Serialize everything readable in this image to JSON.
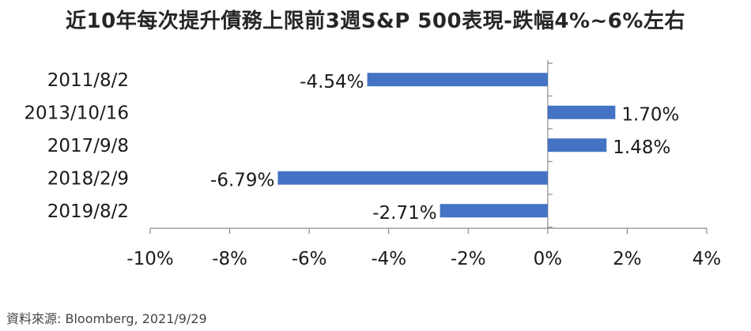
{
  "chart_data": {
    "type": "bar",
    "orientation": "horizontal",
    "title": "近10年每次提升債務上限前3週S&P 500表現-跌幅4%~6%左右",
    "categories": [
      "2011/8/2",
      "2013/10/16",
      "2017/9/8",
      "2018/2/9",
      "2019/8/2"
    ],
    "values": [
      -4.54,
      1.7,
      1.48,
      -6.79,
      -2.71
    ],
    "value_labels": [
      "-4.54%",
      "1.70%",
      "1.48%",
      "-6.79%",
      "-2.71%"
    ],
    "xlim": [
      -10,
      4
    ],
    "x_ticks": [
      -10,
      -8,
      -6,
      -4,
      -2,
      0,
      2,
      4
    ],
    "x_tick_labels": [
      "-10%",
      "-8%",
      "-6%",
      "-4%",
      "-2%",
      "0%",
      "2%",
      "4%"
    ],
    "xlabel": "",
    "ylabel": "",
    "grid": false,
    "legend": "none",
    "bar_color": "#4472C4",
    "source": "資料來源: Bloomberg, 2021/9/29"
  }
}
